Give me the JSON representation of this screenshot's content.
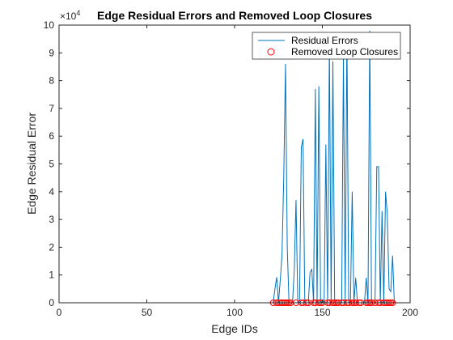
{
  "chart_data": {
    "type": "line",
    "title": "Edge Residual Errors and Removed Loop Closures",
    "xlabel": "Edge IDs",
    "ylabel": "Edge Residual Error",
    "xlim": [
      0,
      200
    ],
    "ylim": [
      0,
      100000
    ],
    "xticks": [
      "0",
      "50",
      "100",
      "150",
      "200"
    ],
    "yticks": [
      "0",
      "1",
      "2",
      "3",
      "4",
      "5",
      "6",
      "7",
      "8",
      "9",
      "10"
    ],
    "y_exponent": {
      "base": "×10",
      "power": "4"
    },
    "grid": false,
    "legend_position": "top-right",
    "colors": {
      "residual": "#0072bd",
      "removed": "#ff0000"
    },
    "series": [
      {
        "name": "Residual Errors",
        "style": "line",
        "x": [
          0,
          122,
          123,
          124,
          125,
          126,
          127,
          128,
          129,
          130,
          131,
          132,
          133,
          134,
          135,
          136,
          137,
          138,
          139,
          140,
          141,
          142,
          143,
          144,
          145,
          146,
          147,
          148,
          149,
          150,
          151,
          152,
          153,
          154,
          155,
          156,
          157,
          158,
          159,
          160,
          161,
          162,
          163,
          164,
          165,
          166,
          167,
          168,
          169,
          170,
          171,
          172,
          173,
          174,
          175,
          176,
          177,
          178,
          179,
          180,
          181,
          182,
          183,
          184,
          185,
          186,
          187,
          188,
          189,
          190,
          191,
          192
        ],
        "y": [
          0,
          0,
          5000,
          9200,
          0,
          8000,
          17000,
          45000,
          86000,
          20000,
          0,
          0,
          0,
          12000,
          37000,
          0,
          0,
          56000,
          59000,
          0,
          0,
          0,
          11000,
          12000,
          0,
          77000,
          0,
          78000,
          0,
          0,
          0,
          57000,
          0,
          93000,
          0,
          87000,
          0,
          0,
          0,
          0,
          0,
          88000,
          0,
          97000,
          0,
          0,
          40000,
          0,
          9000,
          0,
          0,
          0,
          0,
          0,
          9000,
          0,
          98000,
          0,
          0,
          0,
          49000,
          49000,
          0,
          33000,
          0,
          40000,
          32000,
          5000,
          4000,
          17000,
          0,
          0
        ]
      },
      {
        "name": "Removed Loop Closures",
        "style": "marker",
        "x": [
          122,
          124,
          125,
          126,
          127,
          128,
          129,
          130,
          131,
          132,
          135,
          138,
          139,
          141,
          142,
          145,
          146,
          148,
          149,
          150,
          153,
          154,
          156,
          157,
          158,
          159,
          161,
          162,
          164,
          165,
          167,
          168,
          169,
          171,
          172,
          175,
          176,
          177,
          178,
          180,
          182,
          183,
          185,
          186,
          187,
          188,
          189,
          190
        ],
        "y": [
          0,
          0,
          0,
          0,
          0,
          0,
          0,
          0,
          0,
          0,
          0,
          0,
          0,
          0,
          0,
          0,
          0,
          0,
          0,
          0,
          0,
          0,
          0,
          0,
          0,
          0,
          0,
          0,
          0,
          0,
          0,
          0,
          0,
          0,
          0,
          0,
          0,
          0,
          0,
          0,
          0,
          0,
          0,
          0,
          0,
          0,
          0,
          0
        ]
      }
    ]
  }
}
